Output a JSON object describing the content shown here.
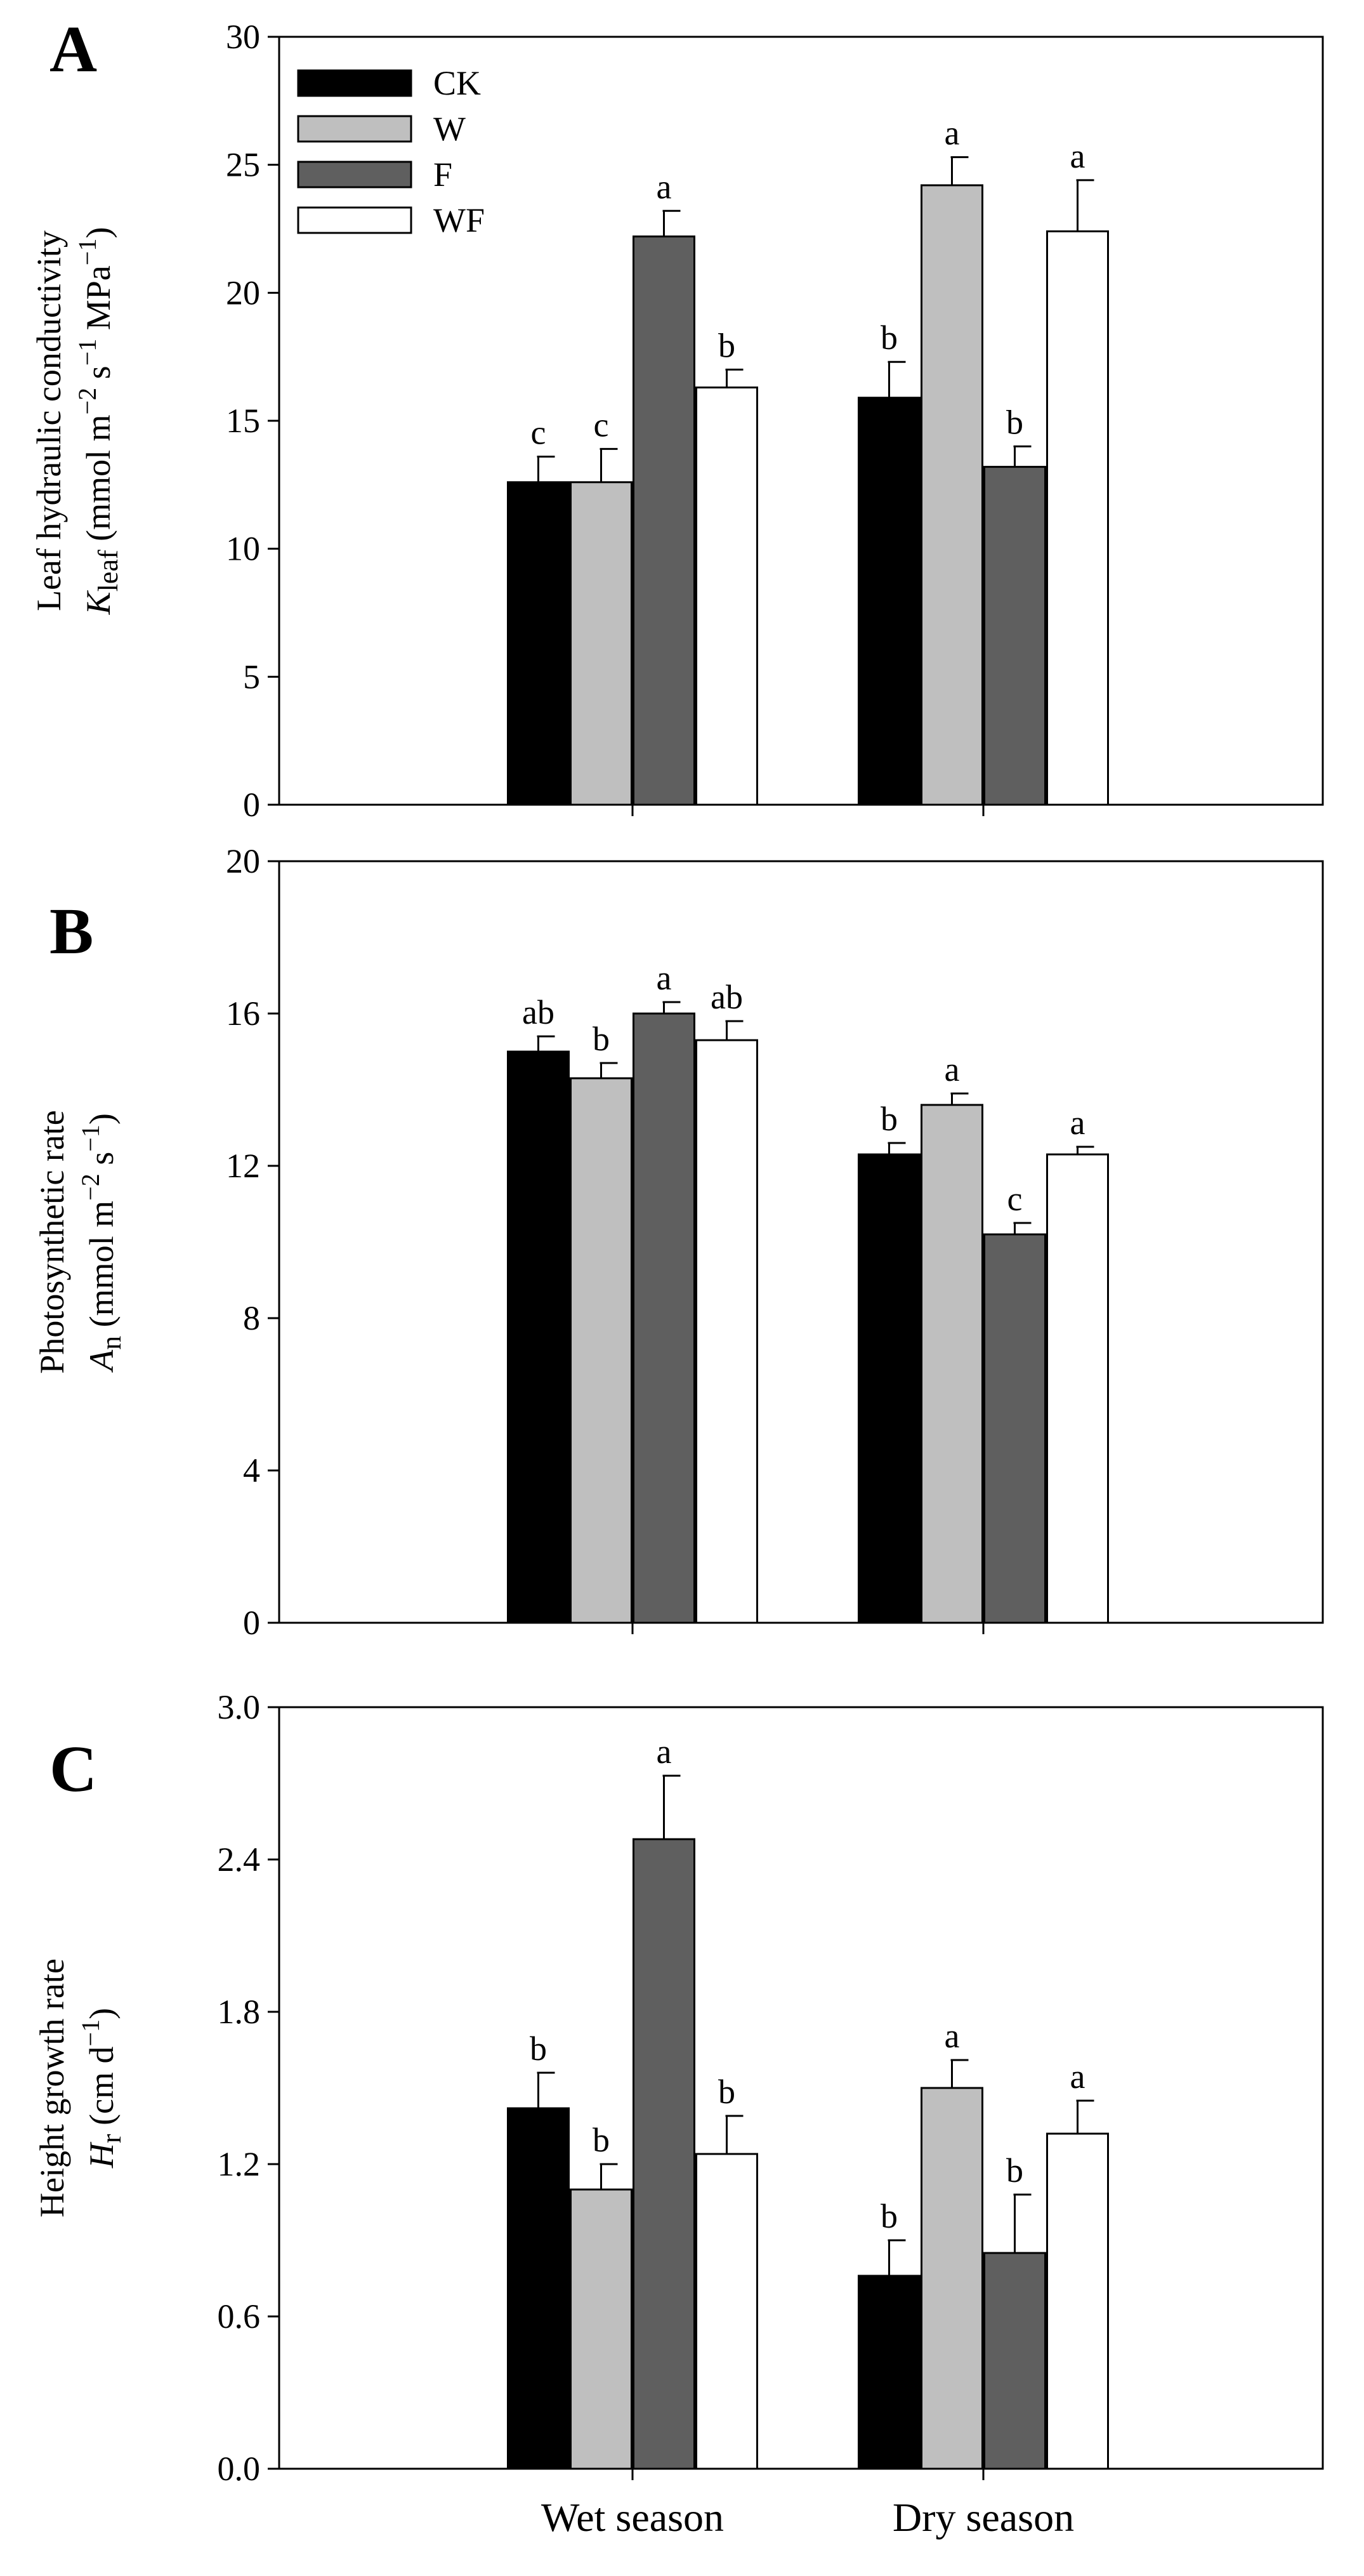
{
  "chart_data": [
    {
      "panel": "A",
      "type": "bar",
      "categories": [
        "Wet season",
        "Dry season"
      ],
      "ylim": [
        0,
        30
      ],
      "ymajor": 5,
      "yticks": [
        "0",
        "5",
        "10",
        "15",
        "20",
        "25",
        "30"
      ],
      "ylabel_line1": "Leaf hydraulic conductivity",
      "ylabel_line2": "K_leaf (mmol m^-2 s^-1 MPa^-1)",
      "ylabel_sym": "K",
      "ylabel_sub": "leaf",
      "ylabel_unit_a": " (mmol m",
      "ylabel_sup1": "−2",
      "ylabel_unit_b": " s",
      "ylabel_sup2": "−1",
      "ylabel_unit_c": " MPa",
      "ylabel_sup3": "−1",
      "ylabel_unit_d": ")",
      "legend": true,
      "series": [
        {
          "name": "CK",
          "values": [
            12.6,
            15.9
          ],
          "errors": [
            1.0,
            1.4
          ],
          "letters": [
            "c",
            "b"
          ]
        },
        {
          "name": "W",
          "values": [
            12.6,
            24.2
          ],
          "errors": [
            1.3,
            1.1
          ],
          "letters": [
            "c",
            "a"
          ]
        },
        {
          "name": "F",
          "values": [
            22.2,
            13.2
          ],
          "errors": [
            1.0,
            0.8
          ],
          "letters": [
            "a",
            "b"
          ]
        },
        {
          "name": "WF",
          "values": [
            16.3,
            22.4
          ],
          "errors": [
            0.7,
            2.0
          ],
          "letters": [
            "b",
            "a"
          ]
        }
      ]
    },
    {
      "panel": "B",
      "type": "bar",
      "categories": [
        "Wet season",
        "Dry season"
      ],
      "ylim": [
        0,
        20
      ],
      "ymajor": 4,
      "yticks": [
        "0",
        "4",
        "8",
        "12",
        "16",
        "20"
      ],
      "ylabel_line1": "Photosynthetic rate",
      "ylabel_line2": "A_n (mmol m^-2 s^-1)",
      "ylabel_sym": "A",
      "ylabel_sub": "n",
      "ylabel_unit_a": " (mmol m",
      "ylabel_sup1": "−2",
      "ylabel_unit_b": " s",
      "ylabel_sup2": "−1",
      "ylabel_unit_c": ")",
      "legend": false,
      "series": [
        {
          "name": "CK",
          "values": [
            15.0,
            12.3
          ],
          "errors": [
            0.4,
            0.3
          ],
          "letters": [
            "ab",
            "b"
          ]
        },
        {
          "name": "W",
          "values": [
            14.3,
            13.6
          ],
          "errors": [
            0.4,
            0.3
          ],
          "letters": [
            "b",
            "a"
          ]
        },
        {
          "name": "F",
          "values": [
            16.0,
            10.2
          ],
          "errors": [
            0.3,
            0.3
          ],
          "letters": [
            "a",
            "c"
          ]
        },
        {
          "name": "WF",
          "values": [
            15.3,
            12.3
          ],
          "errors": [
            0.5,
            0.2
          ],
          "letters": [
            "ab",
            "a"
          ]
        }
      ]
    },
    {
      "panel": "C",
      "type": "bar",
      "categories": [
        "Wet season",
        "Dry season"
      ],
      "ylim": [
        0,
        3
      ],
      "ymajor": 0.6,
      "yticks": [
        "0.0",
        "0.6",
        "1.2",
        "1.8",
        "2.4",
        "3.0"
      ],
      "ylabel_line1": "Height growth rate",
      "ylabel_line2": "H_r (cm d^-1)",
      "ylabel_sym": "H",
      "ylabel_sub": "r",
      "ylabel_unit_a": " (cm d",
      "ylabel_sup1": "−1",
      "ylabel_unit_b": ")",
      "legend": false,
      "series": [
        {
          "name": "CK",
          "values": [
            1.42,
            0.76
          ],
          "errors": [
            0.14,
            0.14
          ],
          "letters": [
            "b",
            "b"
          ]
        },
        {
          "name": "W",
          "values": [
            1.1,
            1.5
          ],
          "errors": [
            0.1,
            0.11
          ],
          "letters": [
            "b",
            "a"
          ]
        },
        {
          "name": "F",
          "values": [
            2.48,
            0.85
          ],
          "errors": [
            0.25,
            0.23
          ],
          "letters": [
            "a",
            "b"
          ]
        },
        {
          "name": "WF",
          "values": [
            1.24,
            1.32
          ],
          "errors": [
            0.15,
            0.13
          ],
          "letters": [
            "b",
            "a"
          ]
        }
      ]
    }
  ],
  "series_colors": {
    "CK": "#000000",
    "W": "#bfbfbf",
    "F": "#5f5f5f",
    "WF": "#ffffff"
  },
  "x_categories": [
    "Wet season",
    "Dry season"
  ]
}
